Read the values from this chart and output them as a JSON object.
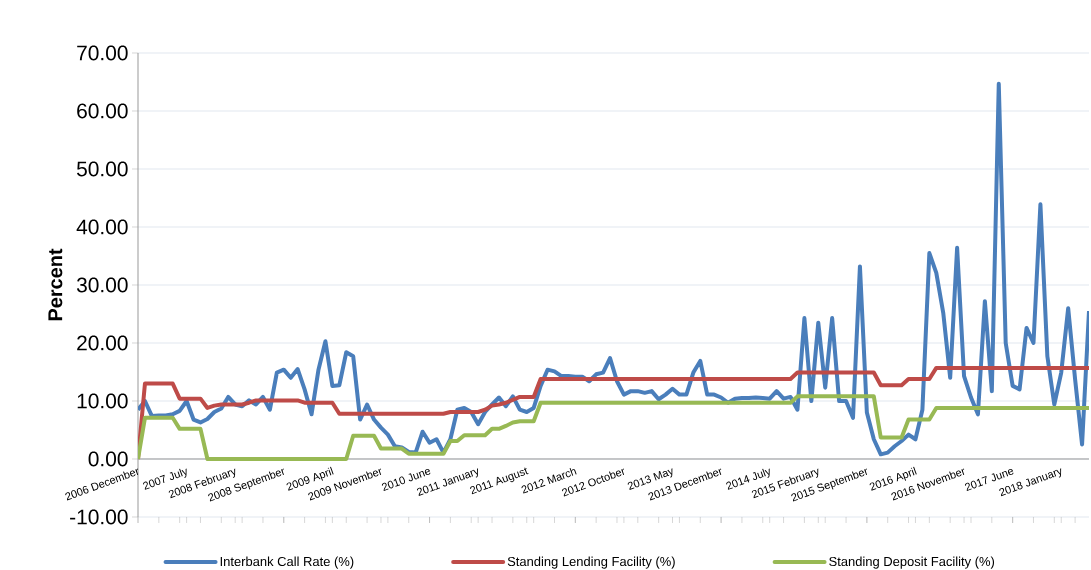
{
  "chart_data": {
    "type": "line",
    "ylabel": "Percent",
    "categories": [
      "2006 December",
      null,
      null,
      null,
      null,
      null,
      null,
      "2007 July",
      null,
      null,
      null,
      null,
      null,
      null,
      "2008 February",
      null,
      null,
      null,
      null,
      null,
      null,
      "2008 September",
      null,
      null,
      null,
      null,
      null,
      null,
      "2009 April",
      null,
      null,
      null,
      null,
      null,
      null,
      "2009 November",
      null,
      null,
      null,
      null,
      null,
      null,
      "2010 June",
      null,
      null,
      null,
      null,
      null,
      null,
      "2011 January",
      null,
      null,
      null,
      null,
      null,
      null,
      "2011 August",
      null,
      null,
      null,
      null,
      null,
      null,
      "2012 March",
      null,
      null,
      null,
      null,
      null,
      null,
      "2012 October",
      null,
      null,
      null,
      null,
      null,
      null,
      "2013 May",
      null,
      null,
      null,
      null,
      null,
      null,
      "2013 December",
      null,
      null,
      null,
      null,
      null,
      null,
      "2014 July",
      null,
      null,
      null,
      null,
      null,
      null,
      "2015 February",
      null,
      null,
      null,
      null,
      null,
      null,
      "2015 September",
      null,
      null,
      null,
      null,
      null,
      null,
      "2016 April",
      null,
      null,
      null,
      null,
      null,
      null,
      "2016 November",
      null,
      null,
      null,
      null,
      null,
      null,
      "2017 June",
      null,
      null,
      null,
      null,
      null,
      null,
      "2018 January",
      null,
      null,
      null,
      null
    ],
    "series": [
      {
        "name": "Interbank Call Rate (%)",
        "color": "#4a7ebb",
        "values": [
          8.5,
          10.0,
          7.4,
          7.5,
          7.5,
          7.7,
          8.3,
          10.0,
          6.8,
          6.3,
          6.9,
          8.1,
          8.7,
          10.7,
          9.4,
          9.1,
          10.1,
          9.4,
          10.7,
          8.5,
          14.9,
          15.4,
          14.0,
          15.5,
          12.0,
          7.7,
          15.4,
          20.3,
          12.6,
          12.7,
          18.4,
          17.7,
          6.8,
          9.4,
          6.8,
          5.4,
          4.2,
          2.2,
          2.0,
          1.2,
          1.1,
          4.7,
          2.8,
          3.4,
          1.1,
          3.4,
          8.5,
          8.8,
          8.1,
          6.0,
          8.1,
          9.4,
          10.6,
          9.1,
          10.8,
          8.5,
          8.1,
          8.8,
          12.6,
          15.4,
          15.1,
          14.3,
          14.3,
          14.2,
          14.2,
          13.4,
          14.6,
          14.9,
          17.4,
          13.4,
          11.1,
          11.7,
          11.7,
          11.4,
          11.7,
          10.3,
          11.1,
          12.1,
          11.1,
          11.1,
          14.9,
          16.9,
          11.1,
          11.1,
          10.6,
          9.7,
          10.4,
          10.5,
          10.5,
          10.6,
          10.5,
          10.4,
          11.7,
          10.4,
          10.7,
          8.5,
          24.3,
          10.0,
          23.5,
          12.3,
          24.3,
          10.0,
          10.0,
          7.1,
          33.2,
          8.0,
          3.4,
          0.8,
          1.1,
          2.2,
          3.1,
          4.2,
          3.4,
          8.5,
          35.5,
          32.1,
          25.2,
          14.0,
          36.4,
          14.3,
          10.6,
          7.7,
          27.2,
          11.7,
          64.7,
          20.0,
          12.6,
          12.0,
          22.6,
          20.0,
          43.9,
          17.7,
          9.4,
          14.9,
          26.0,
          13.7,
          2.5,
          25.5
        ]
      },
      {
        "name": "Standing Lending Facility (%)",
        "color": "#be4b48",
        "values": [
          0,
          13.0,
          13.0,
          13.0,
          13.0,
          13.0,
          10.4,
          10.4,
          10.4,
          10.4,
          8.8,
          9.2,
          9.4,
          9.4,
          9.4,
          9.4,
          9.7,
          10.1,
          10.1,
          10.1,
          10.1,
          10.1,
          10.1,
          10.1,
          9.7,
          9.7,
          9.7,
          9.7,
          9.7,
          7.8,
          7.8,
          7.8,
          7.8,
          7.8,
          7.8,
          7.8,
          7.8,
          7.8,
          7.8,
          7.8,
          7.8,
          7.8,
          7.8,
          7.8,
          7.8,
          8.1,
          8.1,
          8.1,
          8.1,
          8.1,
          8.5,
          9.2,
          9.4,
          9.7,
          10.2,
          10.7,
          10.7,
          10.7,
          13.8,
          13.8,
          13.8,
          13.8,
          13.8,
          13.8,
          13.8,
          13.8,
          13.8,
          13.8,
          13.8,
          13.8,
          13.8,
          13.8,
          13.8,
          13.8,
          13.8,
          13.8,
          13.8,
          13.8,
          13.8,
          13.8,
          13.8,
          13.8,
          13.8,
          13.8,
          13.8,
          13.8,
          13.8,
          13.8,
          13.8,
          13.8,
          13.8,
          13.8,
          13.8,
          13.8,
          13.8,
          14.9,
          14.9,
          14.9,
          14.9,
          14.9,
          14.9,
          14.9,
          14.9,
          14.9,
          14.9,
          14.9,
          14.9,
          12.7,
          12.7,
          12.7,
          12.7,
          13.8,
          13.8,
          13.8,
          13.8,
          15.7,
          15.7,
          15.7,
          15.7,
          15.7,
          15.7,
          15.7,
          15.7,
          15.7,
          15.7,
          15.7,
          15.7,
          15.7,
          15.7,
          15.7,
          15.7,
          15.7,
          15.7,
          15.7,
          15.7,
          15.7,
          15.7,
          15.7
        ]
      },
      {
        "name": "Standing Deposit Facility (%)",
        "color": "#98b954",
        "values": [
          0,
          7.1,
          7.1,
          7.1,
          7.1,
          7.1,
          5.2,
          5.2,
          5.2,
          5.2,
          0,
          0,
          0,
          0,
          0,
          0,
          0,
          0,
          0,
          0,
          0,
          0,
          0,
          0,
          0,
          0,
          0,
          0,
          0,
          0,
          0,
          4.0,
          4.0,
          4.0,
          4.0,
          1.8,
          1.8,
          1.8,
          1.8,
          0.9,
          0.9,
          0.9,
          0.9,
          0.9,
          0.9,
          3.1,
          3.1,
          4.1,
          4.1,
          4.1,
          4.1,
          5.2,
          5.2,
          5.7,
          6.3,
          6.5,
          6.5,
          6.5,
          9.7,
          9.7,
          9.7,
          9.7,
          9.7,
          9.7,
          9.7,
          9.7,
          9.7,
          9.7,
          9.7,
          9.7,
          9.7,
          9.7,
          9.7,
          9.7,
          9.7,
          9.7,
          9.7,
          9.7,
          9.7,
          9.7,
          9.7,
          9.7,
          9.7,
          9.7,
          9.7,
          9.7,
          9.7,
          9.7,
          9.7,
          9.7,
          9.7,
          9.7,
          9.7,
          9.7,
          9.7,
          10.8,
          10.8,
          10.8,
          10.8,
          10.8,
          10.8,
          10.8,
          10.8,
          10.8,
          10.8,
          10.8,
          10.8,
          3.7,
          3.7,
          3.7,
          3.7,
          6.8,
          6.8,
          6.8,
          6.8,
          8.8,
          8.8,
          8.8,
          8.8,
          8.8,
          8.8,
          8.8,
          8.8,
          8.8,
          8.8,
          8.8,
          8.8,
          8.8,
          8.8,
          8.8,
          8.8,
          8.8,
          8.8,
          8.8,
          8.8,
          8.8,
          8.8,
          8.8
        ]
      }
    ],
    "ylim": [
      -10,
      70
    ],
    "yticks": [
      {
        "value": -10,
        "label": "-10.00"
      },
      {
        "value": 0,
        "label": "0.00"
      },
      {
        "value": 10,
        "label": "10.00"
      },
      {
        "value": 20,
        "label": "20.00"
      },
      {
        "value": 30,
        "label": "30.00"
      },
      {
        "value": 40,
        "label": "40.00"
      },
      {
        "value": 50,
        "label": "50.00"
      },
      {
        "value": 60,
        "label": "60.00"
      },
      {
        "value": 70,
        "label": "70.00"
      }
    ],
    "grid": "y",
    "legend": "bottom",
    "marker": "none",
    "line_style": "solid"
  }
}
